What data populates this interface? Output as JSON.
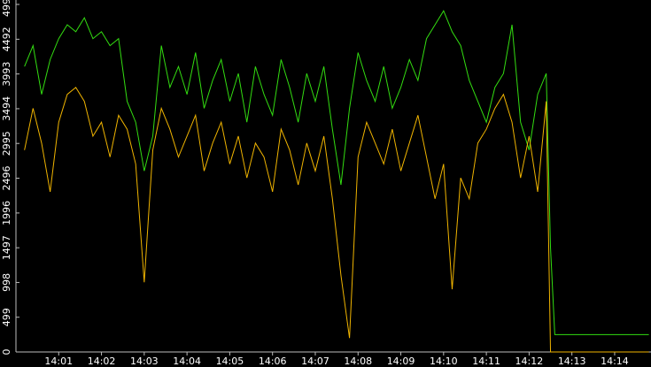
{
  "chart_data": {
    "type": "line",
    "x": [
      0.2,
      0.4,
      0.6,
      0.8,
      1,
      1.2,
      1.4,
      1.6,
      1.8,
      2,
      2.2,
      2.4,
      2.6,
      2.8,
      3,
      3.2,
      3.4,
      3.6,
      3.8,
      4,
      4.2,
      4.4,
      4.6,
      4.8,
      5,
      5.2,
      5.4,
      5.6,
      5.8,
      6,
      6.2,
      6.4,
      6.6,
      6.8,
      7,
      7.2,
      7.4,
      7.6,
      7.8,
      8,
      8.2,
      8.4,
      8.6,
      8.8,
      9,
      9.2,
      9.4,
      9.6,
      9.8,
      10,
      10.2,
      10.4,
      10.6,
      10.8,
      11,
      11.2,
      11.4,
      11.6,
      11.8,
      12,
      12.2,
      12.4,
      12.5,
      12.6,
      14.8
    ],
    "series": [
      {
        "color": "#33dd11",
        "values": [
          4100,
          4400,
          3700,
          4200,
          4500,
          4700,
          4600,
          4800,
          4500,
          4600,
          4400,
          4500,
          3600,
          3300,
          2600,
          3100,
          4400,
          3800,
          4100,
          3700,
          4300,
          3500,
          3900,
          4200,
          3600,
          4000,
          3300,
          4100,
          3700,
          3400,
          4200,
          3800,
          3300,
          4000,
          3600,
          4100,
          3200,
          2400,
          3500,
          4300,
          3900,
          3600,
          4100,
          3500,
          3800,
          4200,
          3900,
          4500,
          4700,
          4900,
          4600,
          4400,
          3900,
          3600,
          3300,
          3800,
          4000,
          4700,
          3300,
          2900,
          3700,
          4000,
          1500,
          250,
          250
        ]
      },
      {
        "color": "#f0b400",
        "values": [
          2900,
          3500,
          3000,
          2300,
          3300,
          3700,
          3800,
          3600,
          3100,
          3300,
          2800,
          3400,
          3200,
          2700,
          1000,
          2900,
          3500,
          3200,
          2800,
          3100,
          3400,
          2600,
          3000,
          3300,
          2700,
          3100,
          2500,
          3000,
          2800,
          2300,
          3200,
          2900,
          2400,
          3000,
          2600,
          3100,
          2200,
          1100,
          200,
          2800,
          3300,
          3000,
          2700,
          3200,
          2600,
          3000,
          3400,
          2800,
          2200,
          2700,
          900,
          2500,
          2200,
          3000,
          3200,
          3500,
          3700,
          3300,
          2500,
          3100,
          2300,
          3600,
          0,
          0,
          0
        ]
      }
    ],
    "xlim": [
      0,
      14.85
    ],
    "xticks": [
      {
        "value": 1,
        "label": "14:01"
      },
      {
        "value": 2,
        "label": "14:02"
      },
      {
        "value": 3,
        "label": "14:03"
      },
      {
        "value": 4,
        "label": "14:04"
      },
      {
        "value": 5,
        "label": "14:05"
      },
      {
        "value": 6,
        "label": "14:06"
      },
      {
        "value": 7,
        "label": "14:07"
      },
      {
        "value": 8,
        "label": "14:08"
      },
      {
        "value": 9,
        "label": "14:09"
      },
      {
        "value": 10,
        "label": "14:10"
      },
      {
        "value": 11,
        "label": "14:11"
      },
      {
        "value": 12,
        "label": "14:12"
      },
      {
        "value": 13,
        "label": "14:13"
      },
      {
        "value": 14,
        "label": "14:14"
      }
    ],
    "ylim": [
      0,
      4992
    ],
    "yticks": [
      0,
      499,
      998,
      1497,
      1996,
      2496,
      2995,
      3494,
      3993,
      4492,
      4992
    ]
  }
}
